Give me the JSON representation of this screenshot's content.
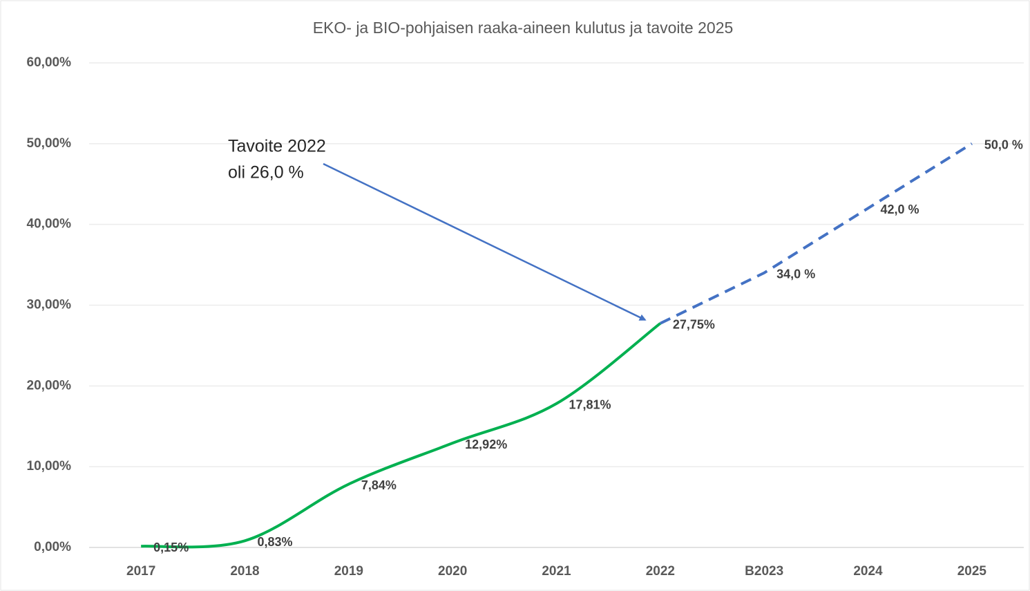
{
  "chart_data": {
    "type": "line",
    "title": "EKO- ja BIO-pohjaisen raaka-aineen kulutus ja tavoite 2025",
    "categories": [
      "2017",
      "2018",
      "2019",
      "2020",
      "2021",
      "2022",
      "B2023",
      "2024",
      "2025"
    ],
    "series": [
      {
        "color": "#00b050",
        "dashed": false,
        "smooth": true,
        "values": [
          0.15,
          0.83,
          7.84,
          12.92,
          17.81,
          27.75,
          null,
          null,
          null
        ],
        "value_labels": [
          "0,15%",
          "0,83%",
          "7,84%",
          "12,92%",
          "17,81%",
          "27,75%",
          null,
          null,
          null
        ]
      },
      {
        "color": "#4472c4",
        "dashed": true,
        "smooth": false,
        "values": [
          null,
          null,
          null,
          null,
          null,
          27.75,
          34.0,
          42.0,
          50.0
        ],
        "value_labels": [
          null,
          null,
          null,
          null,
          null,
          null,
          "34,0 %",
          "42,0 %",
          "50,0 %"
        ]
      }
    ],
    "ylim": [
      0,
      60
    ],
    "yticks": [
      {
        "value": 0,
        "label": "0,00%"
      },
      {
        "value": 10,
        "label": "10,00%"
      },
      {
        "value": 20,
        "label": "20,00%"
      },
      {
        "value": 30,
        "label": "30,00%"
      },
      {
        "value": 40,
        "label": "40,00%"
      },
      {
        "value": 50,
        "label": "50,00%"
      },
      {
        "value": 60,
        "label": "60,00%"
      }
    ],
    "grid": true,
    "annotation": {
      "lines": [
        "Tavoite 2022",
        "oli 26,0 %"
      ],
      "target_category": 5
    }
  }
}
